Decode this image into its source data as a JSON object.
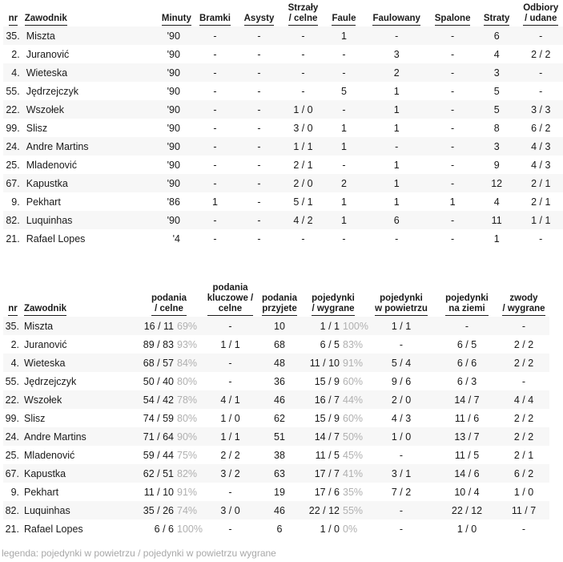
{
  "table1": {
    "headers": {
      "nr": "nr",
      "player": "Zawodnik",
      "minutes": "Minuty",
      "goals": "Bramki",
      "assists": "Asysty",
      "shots_l1": "Strzały",
      "shots_l2": "/ celne",
      "fouls": "Faule",
      "fouled": "Faulowany",
      "offsides": "Spalone",
      "losses": "Straty",
      "recoveries_l1": "Odbiory",
      "recoveries_l2": "/ udane"
    },
    "rows": [
      {
        "nr": "35.",
        "name": "Miszta",
        "min": "'90",
        "goals": "-",
        "assists": "-",
        "shots": "-",
        "fouls": "1",
        "fouled": "-",
        "offsides": "-",
        "losses": "6",
        "recoveries": "-"
      },
      {
        "nr": "2.",
        "name": "Juranović",
        "min": "'90",
        "goals": "-",
        "assists": "-",
        "shots": "-",
        "fouls": "-",
        "fouled": "3",
        "offsides": "-",
        "losses": "4",
        "recoveries": "2 / 2"
      },
      {
        "nr": "4.",
        "name": "Wieteska",
        "min": "'90",
        "goals": "-",
        "assists": "-",
        "shots": "-",
        "fouls": "-",
        "fouled": "2",
        "offsides": "-",
        "losses": "3",
        "recoveries": "-"
      },
      {
        "nr": "55.",
        "name": "Jędrzejczyk",
        "min": "'90",
        "goals": "-",
        "assists": "-",
        "shots": "-",
        "fouls": "5",
        "fouled": "1",
        "offsides": "-",
        "losses": "5",
        "recoveries": "-"
      },
      {
        "nr": "22.",
        "name": "Wszołek",
        "min": "'90",
        "goals": "-",
        "assists": "-",
        "shots": "1 / 0",
        "fouls": "-",
        "fouled": "1",
        "offsides": "-",
        "losses": "5",
        "recoveries": "3 / 3"
      },
      {
        "nr": "99.",
        "name": "Slisz",
        "min": "'90",
        "goals": "-",
        "assists": "-",
        "shots": "3 / 0",
        "fouls": "1",
        "fouled": "1",
        "offsides": "-",
        "losses": "8",
        "recoveries": "6 / 2"
      },
      {
        "nr": "24.",
        "name": "Andre Martins",
        "min": "'90",
        "goals": "-",
        "assists": "-",
        "shots": "1 / 1",
        "fouls": "1",
        "fouled": "-",
        "offsides": "-",
        "losses": "3",
        "recoveries": "4 / 3"
      },
      {
        "nr": "25.",
        "name": "Mladenović",
        "min": "'90",
        "goals": "-",
        "assists": "-",
        "shots": "2 / 1",
        "fouls": "-",
        "fouled": "1",
        "offsides": "-",
        "losses": "9",
        "recoveries": "4 / 3"
      },
      {
        "nr": "67.",
        "name": "Kapustka",
        "min": "'90",
        "goals": "-",
        "assists": "-",
        "shots": "2 / 0",
        "fouls": "2",
        "fouled": "1",
        "offsides": "-",
        "losses": "12",
        "recoveries": "2 / 1"
      },
      {
        "nr": "9.",
        "name": "Pekhart",
        "min": "'86",
        "goals": "1",
        "assists": "-",
        "shots": "5 / 1",
        "fouls": "1",
        "fouled": "1",
        "offsides": "1",
        "losses": "4",
        "recoveries": "2 / 1"
      },
      {
        "nr": "82.",
        "name": "Luquinhas",
        "min": "'90",
        "goals": "-",
        "assists": "-",
        "shots": "4 / 2",
        "fouls": "1",
        "fouled": "6",
        "offsides": "-",
        "losses": "11",
        "recoveries": "1 / 1"
      },
      {
        "nr": "21.",
        "name": "Rafael Lopes",
        "min": "'4",
        "goals": "-",
        "assists": "-",
        "shots": "-",
        "fouls": "-",
        "fouled": "-",
        "offsides": "-",
        "losses": "1",
        "recoveries": "-"
      }
    ]
  },
  "table2": {
    "headers": {
      "nr": "nr",
      "player": "Zawodnik",
      "passes_l1": "podania",
      "passes_l2": "/ celne",
      "key_l1": "podania",
      "key_l2": "kluczowe /",
      "key_l3": "celne",
      "recv_l1": "podania",
      "recv_l2": "przyjete",
      "duels_l1": "pojedynki",
      "duels_l2": "/ wygrane",
      "air_l1": "pojedynki",
      "air_l2": "w powietrzu",
      "ground_l1": "pojedynki",
      "ground_l2": "na ziemi",
      "races_l1": "zwody",
      "races_l2": "/ wygrane"
    },
    "rows": [
      {
        "nr": "35.",
        "name": "Miszta",
        "passes": "16 / 11",
        "passes_pct": "69%",
        "key": "-",
        "recv": "10",
        "duels": "1 / 1",
        "duels_pct": "100%",
        "air": "1 / 1",
        "ground": "-",
        "races": "-"
      },
      {
        "nr": "2.",
        "name": "Juranović",
        "passes": "89 / 83",
        "passes_pct": "93%",
        "key": "1 / 1",
        "recv": "68",
        "duels": "6 / 5",
        "duels_pct": "83%",
        "air": "-",
        "ground": "6 / 5",
        "races": "2 / 2"
      },
      {
        "nr": "4.",
        "name": "Wieteska",
        "passes": "68 / 57",
        "passes_pct": "84%",
        "key": "-",
        "recv": "48",
        "duels": "11 / 10",
        "duels_pct": "91%",
        "air": "5 / 4",
        "ground": "6 / 6",
        "races": "2 / 2"
      },
      {
        "nr": "55.",
        "name": "Jędrzejczyk",
        "passes": "50 / 40",
        "passes_pct": "80%",
        "key": "-",
        "recv": "36",
        "duels": "15 / 9",
        "duels_pct": "60%",
        "air": "9 / 6",
        "ground": "6 / 3",
        "races": "-"
      },
      {
        "nr": "22.",
        "name": "Wszołek",
        "passes": "54 / 42",
        "passes_pct": "78%",
        "key": "4 / 1",
        "recv": "46",
        "duels": "16 / 7",
        "duels_pct": "44%",
        "air": "2 / 0",
        "ground": "14 / 7",
        "races": "4 / 4"
      },
      {
        "nr": "99.",
        "name": "Slisz",
        "passes": "74 / 59",
        "passes_pct": "80%",
        "key": "1 / 0",
        "recv": "62",
        "duels": "15 / 9",
        "duels_pct": "60%",
        "air": "4 / 3",
        "ground": "11 / 6",
        "races": "2 / 2"
      },
      {
        "nr": "24.",
        "name": "Andre Martins",
        "passes": "71 / 64",
        "passes_pct": "90%",
        "key": "1 / 1",
        "recv": "51",
        "duels": "14 / 7",
        "duels_pct": "50%",
        "air": "1 / 0",
        "ground": "13 / 7",
        "races": "2 / 2"
      },
      {
        "nr": "25.",
        "name": "Mladenović",
        "passes": "59 / 44",
        "passes_pct": "75%",
        "key": "2 / 2",
        "recv": "38",
        "duels": "11 / 5",
        "duels_pct": "45%",
        "air": "-",
        "ground": "11 / 5",
        "races": "2 / 1"
      },
      {
        "nr": "67.",
        "name": "Kapustka",
        "passes": "62 / 51",
        "passes_pct": "82%",
        "key": "3 / 2",
        "recv": "63",
        "duels": "17 / 7",
        "duels_pct": "41%",
        "air": "3 / 1",
        "ground": "14 / 6",
        "races": "6 / 2"
      },
      {
        "nr": "9.",
        "name": "Pekhart",
        "passes": "11 / 10",
        "passes_pct": "91%",
        "key": "-",
        "recv": "19",
        "duels": "17 / 6",
        "duels_pct": "35%",
        "air": "7 / 2",
        "ground": "10 / 4",
        "races": "1 / 0"
      },
      {
        "nr": "82.",
        "name": "Luquinhas",
        "passes": "35 / 26",
        "passes_pct": "74%",
        "key": "3 / 0",
        "recv": "46",
        "duels": "22 / 12",
        "duels_pct": "55%",
        "air": "-",
        "ground": "22 / 12",
        "races": "11 / 7"
      },
      {
        "nr": "21.",
        "name": "Rafael Lopes",
        "passes": "6 / 6",
        "passes_pct": "100%",
        "key": "-",
        "recv": "6",
        "duels": "1 / 0",
        "duels_pct": "0%",
        "air": "-",
        "ground": "1 / 0",
        "races": "-"
      }
    ]
  },
  "legend": "legenda: pojedynki w powietrzu / pojedynki w powietrzu wygrane"
}
